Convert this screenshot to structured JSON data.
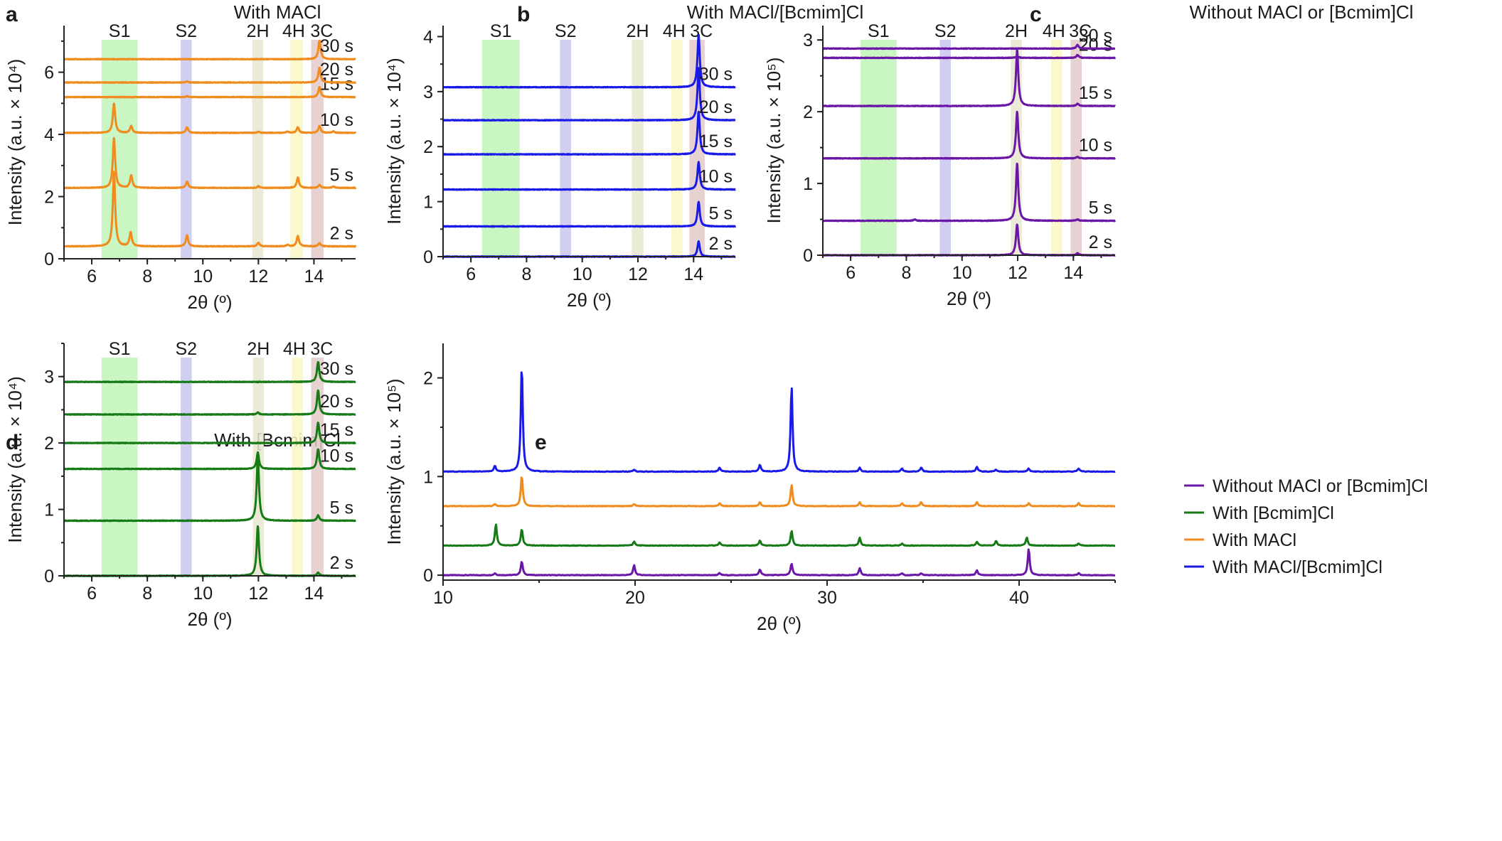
{
  "chart_data": [
    {
      "id": "a",
      "type": "line",
      "panel_label": "a",
      "title": "With MACl",
      "xlabel": "2θ (º)",
      "ylabel": "Intensity (a.u. × 10⁴)",
      "xlim": [
        5,
        15.5
      ],
      "ylim": [
        0,
        7.5
      ],
      "xticks": [
        "6",
        "8",
        "10",
        "12",
        "14"
      ],
      "yticks": [
        "0",
        "2",
        "4",
        "6"
      ],
      "color": "#f08c1e",
      "bands": [
        {
          "label": "S1",
          "from": 6.35,
          "to": 7.65,
          "color": "#bff5b8"
        },
        {
          "label": "S2",
          "from": 9.2,
          "to": 9.6,
          "color": "#c9c7ef"
        },
        {
          "label": "2H",
          "from": 11.78,
          "to": 12.18,
          "color": "#e7e6cf"
        },
        {
          "label": "4H",
          "from": 13.15,
          "to": 13.6,
          "color": "#fbf7c6"
        },
        {
          "label": "3C",
          "from": 13.9,
          "to": 14.35,
          "color": "#e3caca"
        }
      ],
      "series": [
        {
          "name": "2 s",
          "baseline": 0.4,
          "peaks": [
            [
              6.8,
              2.4
            ],
            [
              7.4,
              0.45
            ],
            [
              9.43,
              0.35
            ],
            [
              12.0,
              0.12
            ],
            [
              13.05,
              0.05
            ],
            [
              13.42,
              0.33
            ],
            [
              14.2,
              0.1
            ]
          ]
        },
        {
          "name": "5 s",
          "baseline": 2.28,
          "peaks": [
            [
              6.8,
              1.6
            ],
            [
              7.42,
              0.4
            ],
            [
              9.43,
              0.2
            ],
            [
              12.0,
              0.05
            ],
            [
              13.42,
              0.33
            ],
            [
              14.2,
              0.1
            ],
            [
              14.7,
              0.05
            ]
          ]
        },
        {
          "name": "10 s",
          "baseline": 4.05,
          "peaks": [
            [
              6.8,
              0.95
            ],
            [
              7.42,
              0.22
            ],
            [
              9.43,
              0.18
            ],
            [
              12.0,
              0.04
            ],
            [
              13.05,
              0.04
            ],
            [
              13.42,
              0.18
            ],
            [
              14.2,
              0.22
            ],
            [
              14.7,
              0.05
            ]
          ]
        },
        {
          "name": "15 s",
          "baseline": 5.2,
          "peaks": [
            [
              9.43,
              0.03
            ],
            [
              14.2,
              0.32
            ]
          ]
        },
        {
          "name": "20 s",
          "baseline": 5.67,
          "peaks": [
            [
              9.43,
              0.03
            ],
            [
              14.2,
              0.48
            ]
          ]
        },
        {
          "name": "30 s",
          "baseline": 6.42,
          "peaks": [
            [
              14.2,
              0.6
            ]
          ]
        }
      ]
    },
    {
      "id": "b",
      "type": "line",
      "panel_label": "b",
      "title": "With MACl/[Bcmim]Cl",
      "xlabel": "2θ (º)",
      "ylabel": "Intensity (a.u. × 10⁴)",
      "xlim": [
        5,
        15.5
      ],
      "ylim": [
        0,
        4.2
      ],
      "xticks": [
        "6",
        "8",
        "10",
        "12",
        "14"
      ],
      "yticks": [
        "0",
        "1",
        "2",
        "3",
        "4"
      ],
      "color": "#1a1ae6",
      "bands": [
        {
          "label": "S1",
          "from": 6.4,
          "to": 7.75,
          "color": "#bff5b8"
        },
        {
          "label": "S2",
          "from": 9.2,
          "to": 9.6,
          "color": "#c9c7ef"
        },
        {
          "label": "2H",
          "from": 11.78,
          "to": 12.2,
          "color": "#e7e6cf"
        },
        {
          "label": "4H",
          "from": 13.2,
          "to": 13.6,
          "color": "#fbf7c6"
        },
        {
          "label": "3C",
          "from": 13.85,
          "to": 14.4,
          "color": "#e3caca"
        }
      ],
      "series": [
        {
          "name": "2 s",
          "baseline": 0.0,
          "peaks": [
            [
              14.18,
              0.28
            ]
          ]
        },
        {
          "name": "5 s",
          "baseline": 0.55,
          "peaks": [
            [
              14.18,
              0.45
            ]
          ]
        },
        {
          "name": "10 s",
          "baseline": 1.22,
          "peaks": [
            [
              14.18,
              0.5
            ]
          ]
        },
        {
          "name": "15 s",
          "baseline": 1.86,
          "peaks": [
            [
              14.18,
              0.78
            ]
          ]
        },
        {
          "name": "20 s",
          "baseline": 2.48,
          "peaks": [
            [
              14.18,
              0.95
            ]
          ]
        },
        {
          "name": "30 s",
          "baseline": 3.08,
          "peaks": [
            [
              14.18,
              0.95
            ]
          ]
        }
      ]
    },
    {
      "id": "c",
      "type": "line",
      "panel_label": "c",
      "title": "Without MACl or [Bcmim]Cl",
      "xlabel": "2θ (º)",
      "ylabel": "Intensity (a.u. × 10⁵)",
      "xlim": [
        5,
        15.5
      ],
      "ylim": [
        0,
        3.2
      ],
      "xticks": [
        "6",
        "8",
        "10",
        "12",
        "14"
      ],
      "yticks": [
        "0",
        "1",
        "2",
        "3"
      ],
      "color": "#6a16a6",
      "bands": [
        {
          "label": "S1",
          "from": 6.35,
          "to": 7.65,
          "color": "#bff5b8"
        },
        {
          "label": "S2",
          "from": 9.2,
          "to": 9.6,
          "color": "#c9c7ef"
        },
        {
          "label": "2H",
          "from": 11.75,
          "to": 12.15,
          "color": "#e7e6cf"
        },
        {
          "label": "4H",
          "from": 13.2,
          "to": 13.6,
          "color": "#fbf7c6"
        },
        {
          "label": "3C",
          "from": 13.9,
          "to": 14.3,
          "color": "#e3caca"
        }
      ],
      "series": [
        {
          "name": "2 s",
          "baseline": 0.0,
          "peaks": [
            [
              11.98,
              0.43
            ],
            [
              14.15,
              0.03
            ]
          ]
        },
        {
          "name": "5 s",
          "baseline": 0.48,
          "peaks": [
            [
              8.3,
              0.02
            ],
            [
              11.98,
              0.8
            ],
            [
              14.15,
              0.02
            ]
          ]
        },
        {
          "name": "10 s",
          "baseline": 1.35,
          "peaks": [
            [
              11.98,
              0.65
            ],
            [
              14.15,
              0.02
            ]
          ]
        },
        {
          "name": "15 s",
          "baseline": 2.08,
          "peaks": [
            [
              11.98,
              0.78
            ],
            [
              14.15,
              0.03
            ]
          ]
        },
        {
          "name": "20 s",
          "baseline": 2.75,
          "peaks": [
            [
              11.98,
              0.03
            ],
            [
              14.15,
              0.04
            ]
          ]
        },
        {
          "name": "30 s",
          "baseline": 2.88,
          "peaks": [
            [
              14.15,
              0.05
            ]
          ]
        }
      ]
    },
    {
      "id": "d",
      "type": "line",
      "panel_label": "d",
      "title": "With [Bcmim]Cl",
      "xlabel": "2θ (º)",
      "ylabel": "Intensity (a.u. × 10⁴)",
      "xlim": [
        5,
        15.5
      ],
      "ylim": [
        0,
        3.5
      ],
      "xticks": [
        "6",
        "8",
        "10",
        "12",
        "14"
      ],
      "yticks": [
        "0",
        "1",
        "2",
        "3"
      ],
      "color": "#167a16",
      "bands": [
        {
          "label": "S1",
          "from": 6.35,
          "to": 7.65,
          "color": "#bff5b8"
        },
        {
          "label": "S2",
          "from": 9.2,
          "to": 9.6,
          "color": "#c9c7ef"
        },
        {
          "label": "2H",
          "from": 11.8,
          "to": 12.2,
          "color": "#e7e6cf"
        },
        {
          "label": "4H",
          "from": 13.2,
          "to": 13.6,
          "color": "#fbf7c6"
        },
        {
          "label": "3C",
          "from": 13.9,
          "to": 14.35,
          "color": "#e3caca"
        }
      ],
      "series": [
        {
          "name": "2 s",
          "baseline": 0.0,
          "peaks": [
            [
              11.98,
              0.75
            ],
            [
              14.15,
              0.05
            ]
          ]
        },
        {
          "name": "5 s",
          "baseline": 0.83,
          "peaks": [
            [
              11.98,
              0.95
            ],
            [
              14.15,
              0.08
            ]
          ]
        },
        {
          "name": "10 s",
          "baseline": 1.61,
          "peaks": [
            [
              11.98,
              0.25
            ],
            [
              14.15,
              0.3
            ]
          ]
        },
        {
          "name": "15 s",
          "baseline": 2.0,
          "peaks": [
            [
              14.15,
              0.31
            ]
          ]
        },
        {
          "name": "20 s",
          "baseline": 2.43,
          "peaks": [
            [
              11.98,
              0.03
            ],
            [
              14.15,
              0.36
            ]
          ]
        },
        {
          "name": "30 s",
          "baseline": 2.92,
          "peaks": [
            [
              14.15,
              0.3
            ]
          ]
        }
      ]
    },
    {
      "id": "e",
      "type": "line",
      "panel_label": "e",
      "title": "",
      "xlabel": "2θ (º)",
      "ylabel": "Intensity (a.u. × 10⁵)",
      "xlim": [
        10,
        45
      ],
      "ylim": [
        -0.05,
        2.35
      ],
      "xticks": [
        "10",
        "20",
        "30",
        "40"
      ],
      "yticks": [
        "0",
        "1",
        "2"
      ],
      "legend_position": "top-right",
      "series": [
        {
          "name": "Without MACl or [Bcmim]Cl",
          "color": "#6a16a6",
          "baseline": 0.0,
          "peaks": [
            [
              12.7,
              0.02
            ],
            [
              14.1,
              0.14
            ],
            [
              19.95,
              0.1
            ],
            [
              24.4,
              0.02
            ],
            [
              26.5,
              0.06
            ],
            [
              28.15,
              0.12
            ],
            [
              31.7,
              0.07
            ],
            [
              33.9,
              0.02
            ],
            [
              34.9,
              0.02
            ],
            [
              37.8,
              0.05
            ],
            [
              40.5,
              0.27
            ],
            [
              43.1,
              0.02
            ]
          ]
        },
        {
          "name": "With [Bcmim]Cl",
          "color": "#167a16",
          "baseline": 0.3,
          "peaks": [
            [
              12.75,
              0.22
            ],
            [
              14.1,
              0.17
            ],
            [
              19.95,
              0.04
            ],
            [
              24.4,
              0.03
            ],
            [
              26.5,
              0.05
            ],
            [
              28.15,
              0.15
            ],
            [
              31.7,
              0.08
            ],
            [
              33.9,
              0.02
            ],
            [
              37.8,
              0.04
            ],
            [
              38.8,
              0.05
            ],
            [
              40.4,
              0.08
            ],
            [
              43.1,
              0.02
            ]
          ]
        },
        {
          "name": "With MACl",
          "color": "#f08c1e",
          "baseline": 0.7,
          "peaks": [
            [
              12.7,
              0.02
            ],
            [
              14.1,
              0.31
            ],
            [
              19.95,
              0.02
            ],
            [
              24.4,
              0.03
            ],
            [
              26.5,
              0.04
            ],
            [
              28.15,
              0.22
            ],
            [
              31.7,
              0.04
            ],
            [
              33.9,
              0.03
            ],
            [
              34.9,
              0.04
            ],
            [
              37.8,
              0.04
            ],
            [
              40.5,
              0.03
            ],
            [
              43.1,
              0.03
            ]
          ]
        },
        {
          "name": "With MACl/[Bcmim]Cl",
          "color": "#1a1ae6",
          "baseline": 1.05,
          "peaks": [
            [
              12.7,
              0.06
            ],
            [
              14.1,
              1.08
            ],
            [
              19.95,
              0.02
            ],
            [
              24.4,
              0.04
            ],
            [
              26.5,
              0.07
            ],
            [
              28.15,
              0.87
            ],
            [
              31.7,
              0.04
            ],
            [
              33.9,
              0.03
            ],
            [
              34.9,
              0.04
            ],
            [
              37.8,
              0.05
            ],
            [
              38.8,
              0.02
            ],
            [
              40.5,
              0.03
            ],
            [
              43.1,
              0.03
            ]
          ]
        }
      ]
    }
  ]
}
